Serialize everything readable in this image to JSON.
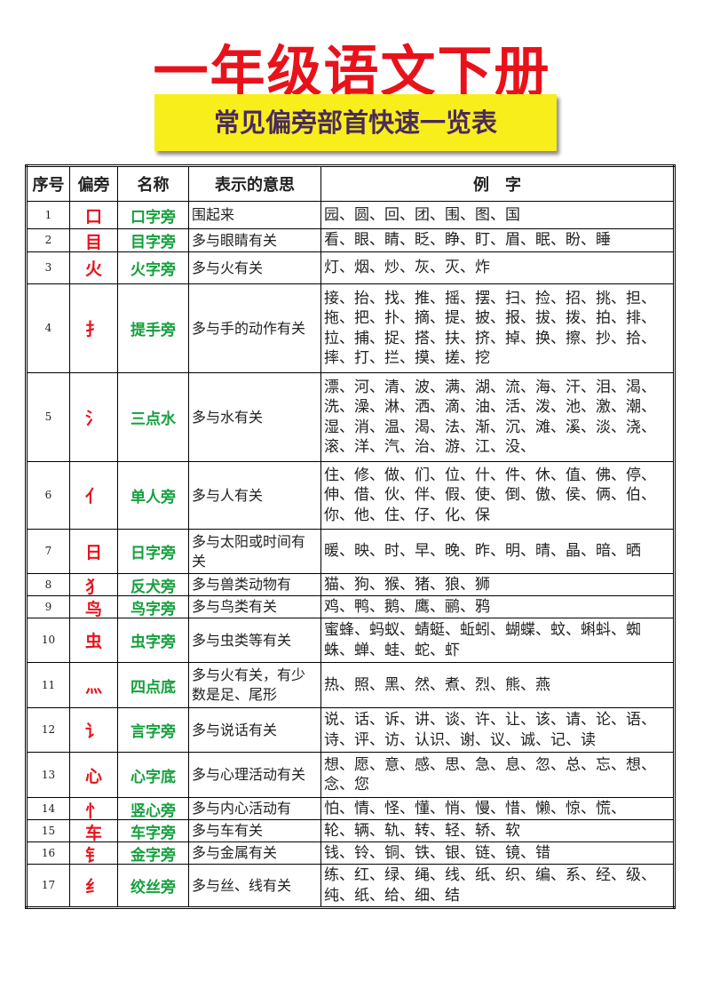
{
  "header": {
    "title": "一年级语文下册",
    "subtitle": "常见偏旁部首快速一览表"
  },
  "table": {
    "columns": [
      "序号",
      "偏旁",
      "名称",
      "表示的意思",
      "例　字"
    ],
    "rows": [
      [
        1,
        "口",
        "口字旁",
        "围起来",
        "园、圆、回、团、围、图、国"
      ],
      [
        2,
        "目",
        "目字旁",
        "多与眼睛有关",
        "看、眼、睛、眨、睁、盯、眉、眠、盼、睡"
      ],
      [
        3,
        "火",
        "火字旁",
        "多与火有关",
        "灯、烟、炒、灰、灭、炸"
      ],
      [
        4,
        "扌",
        "提手旁",
        "多与手的动作有关",
        "接、抬、找、推、摇、摆、扫、捡、招、挑、担、拖、把、扑、摘、提、披、报、拔、拨、拍、排、拉、捕、捉、搭、扶、挤、掉、换、擦、抄、拾、摔、打、拦、摸、搓、挖"
      ],
      [
        5,
        "氵",
        "三点水",
        "多与水有关",
        "漂、河、清、波、满、湖、流、海、汗、泪、渴、洗、澡、淋、洒、滴、油、活、泼、池、激、潮、湿、消、温、渴、法、渐、沉、滩、溪、淡、浇、滚、洋、汽、治、游、江、没、"
      ],
      [
        6,
        "亻",
        "单人旁",
        "多与人有关",
        "住、修、做、们、位、什、件、休、值、佛、停、伸、借、伙、伴、假、使、倒、傲、侯、俩、伯、你、他、住、仔、化、保"
      ],
      [
        7,
        "日",
        "日字旁",
        "多与太阳或时间有关",
        "暖、映、时、早、晚、昨、明、晴、晶、暗、晒"
      ],
      [
        8,
        "犭",
        "反犬旁",
        "多与兽类动物有",
        "猫、狗、猴、猪、狼、狮"
      ],
      [
        9,
        "鸟",
        "鸟字旁",
        "多与鸟类有关",
        "鸡、鸭、鹅、鹰、鹂、鸦"
      ],
      [
        10,
        "虫",
        "虫字旁",
        "多与虫类等有关",
        "蜜蜂、蚂蚁、蜻蜓、蚯蚓、蝴蝶、蚊、蝌蚪、蜘蛛、蝉、蛙、蛇、虾"
      ],
      [
        11,
        "灬",
        "四点底",
        "多与火有关，有少数是足、尾形",
        "热、照、黑、然、煮、烈、熊、燕"
      ],
      [
        12,
        "讠",
        "言字旁",
        "多与说话有关",
        "说、话、诉、讲、谈、许、让、该、请、论、语、诗、评、访、认识、谢、议、诚、记、读"
      ],
      [
        13,
        "心",
        "心字底",
        "多与心理活动有关",
        "想、愿、意、感、思、急、息、忽、总、忘、想、念、您"
      ],
      [
        14,
        "忄",
        "竖心旁",
        "多与内心活动有",
        "怕、情、怪、懂、悄、慢、惜、懒、惊、慌、"
      ],
      [
        15,
        "车",
        "车字旁",
        "多与车有关",
        "轮、辆、轨、转、轻、轿、软"
      ],
      [
        16,
        "钅",
        "金字旁",
        "多与金属有关",
        "钱、铃、铜、铁、银、链、镜、错"
      ],
      [
        17,
        "纟",
        "绞丝旁",
        "多与丝、线有关",
        "练、红、绿、绳、线、纸、织、编、系、经、级、纯、纸、给、细、结"
      ]
    ]
  }
}
